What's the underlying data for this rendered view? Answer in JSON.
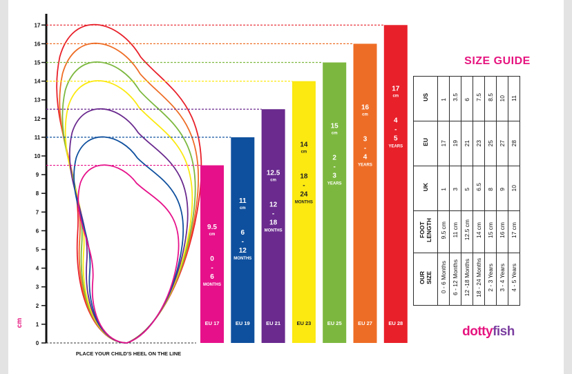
{
  "chart_data": {
    "type": "bar",
    "title": "SIZE GUIDE",
    "ylabel": "cm",
    "xlabel": "PLACE YOUR CHILD'S HEEL ON THE LINE",
    "ylim": [
      0,
      17
    ],
    "y_ticks": [
      "0",
      "1",
      "2",
      "3",
      "4",
      "5",
      "6",
      "7",
      "8",
      "9",
      "10",
      "11",
      "12",
      "13",
      "14",
      "15",
      "16",
      "17"
    ],
    "bars": [
      {
        "value": 9.5,
        "cm_label": "9.5",
        "cm_unit": "cm",
        "age_parts": [
          "0",
          "-",
          "6"
        ],
        "age_unit": "MONTHS",
        "eu": "EU 17",
        "color": "#e6118a"
      },
      {
        "value": 11,
        "cm_label": "11",
        "cm_unit": "cm",
        "age_parts": [
          "6",
          "-",
          "12"
        ],
        "age_unit": "MONTHS",
        "eu": "EU 19",
        "color": "#0f509e"
      },
      {
        "value": 12.5,
        "cm_label": "12.5",
        "cm_unit": "cm",
        "age_parts": [
          "12",
          "-",
          "18"
        ],
        "age_unit": "MONTHS",
        "eu": "EU 21",
        "color": "#6a2a8e"
      },
      {
        "value": 14,
        "cm_label": "14",
        "cm_unit": "cm",
        "age_parts": [
          "18",
          "-",
          "24"
        ],
        "age_unit": "MONTHS",
        "eu": "EU 23",
        "color": "#fbe911"
      },
      {
        "value": 15,
        "cm_label": "15",
        "cm_unit": "cm",
        "age_parts": [
          "2",
          "-",
          "3"
        ],
        "age_unit": "YEARS",
        "eu": "EU 25",
        "color": "#7cb83f"
      },
      {
        "value": 16,
        "cm_label": "16",
        "cm_unit": "cm",
        "age_parts": [
          "3",
          "-",
          "4"
        ],
        "age_unit": "YEARS",
        "eu": "EU 27",
        "color": "#ee6d26"
      },
      {
        "value": 17,
        "cm_label": "17",
        "cm_unit": "cm",
        "age_parts": [
          "4",
          "-",
          "5"
        ],
        "age_unit": "YEARS",
        "eu": "EU 28",
        "color": "#e8202a"
      }
    ]
  },
  "size_table": {
    "rows": [
      {
        "header": "US",
        "values": [
          "1",
          "3.5",
          "6",
          "7.5",
          "8.5",
          "10",
          "11"
        ]
      },
      {
        "header": "EU",
        "values": [
          "17",
          "19",
          "21",
          "23",
          "25",
          "27",
          "28"
        ]
      },
      {
        "header": "UK",
        "values": [
          "1",
          "3",
          "5",
          "6.5",
          "8",
          "9",
          "10"
        ]
      },
      {
        "header_lines": [
          "FOOT",
          "LENGTH"
        ],
        "values": [
          "9.5 cm",
          "11 cm",
          "12.5 cm",
          "14 cm",
          "15 cm",
          "16 cm",
          "17 cm"
        ]
      },
      {
        "header_lines": [
          "OUR",
          "SIZE"
        ],
        "values": [
          "0 - 6 Months",
          "6 - 12 Months",
          "12 -18 Months",
          "18 - 24 Months",
          "2 - 3 Years",
          "3 - 4 Years",
          "4 - 5 Years"
        ]
      }
    ]
  },
  "logo": {
    "part1": "dotty",
    "part2": "fish"
  }
}
